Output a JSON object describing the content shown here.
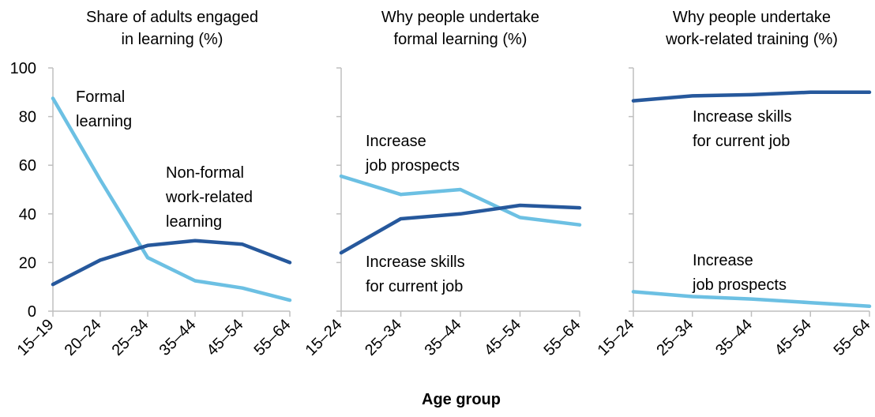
{
  "colors": {
    "light_blue": "#6cc0e3",
    "dark_blue": "#26589c",
    "axis": "#bfbfbf"
  },
  "xlabel": "Age group",
  "chart_data": [
    {
      "type": "line",
      "title": "Share of adults engaged in learning (%)",
      "title_lines": [
        "Share of adults engaged",
        "in learning (%)"
      ],
      "categories": [
        "15–19",
        "20–24",
        "25–34",
        "35–44",
        "45–54",
        "55–64"
      ],
      "yticks": [
        "0",
        "20",
        "40",
        "60",
        "80",
        "100"
      ],
      "ylim": [
        0,
        100
      ],
      "show_ytick_labels": true,
      "series": [
        {
          "name": "Formal learning",
          "color": "#6cc0e3",
          "values": [
            87.5,
            54,
            22,
            12.5,
            9.5,
            4.5
          ]
        },
        {
          "name": "Non-formal work-related learning",
          "color": "#26589c",
          "values": [
            11,
            21,
            27,
            29,
            27.5,
            20
          ]
        }
      ],
      "annotations": [
        {
          "lines": [
            "Formal",
            "learning"
          ]
        },
        {
          "lines": [
            "Non-formal",
            "work-related",
            "learning"
          ]
        }
      ]
    },
    {
      "type": "line",
      "title": "Why people undertake formal learning (%)",
      "title_lines": [
        "Why people undertake",
        "formal learning (%)"
      ],
      "categories": [
        "15–24",
        "25–34",
        "35–44",
        "45–54",
        "55–64"
      ],
      "ylim": [
        0,
        100
      ],
      "show_ytick_labels": false,
      "series": [
        {
          "name": "Increase job prospects",
          "color": "#6cc0e3",
          "values": [
            55.5,
            48,
            50,
            38.5,
            35.5
          ]
        },
        {
          "name": "Increase skills for current job",
          "color": "#26589c",
          "values": [
            24,
            38,
            40,
            43.5,
            42.5
          ]
        }
      ],
      "annotations": [
        {
          "lines": [
            "Increase",
            "job prospects"
          ]
        },
        {
          "lines": [
            "Increase skills",
            "for current job"
          ]
        }
      ]
    },
    {
      "type": "line",
      "title": "Why people undertake work-related training (%)",
      "title_lines": [
        "Why people undertake",
        "work-related training (%)"
      ],
      "categories": [
        "15–24",
        "25–34",
        "35–44",
        "45–54",
        "55–64"
      ],
      "ylim": [
        0,
        100
      ],
      "show_ytick_labels": false,
      "series": [
        {
          "name": "Increase skills for current job",
          "color": "#26589c",
          "values": [
            86.5,
            88.5,
            89,
            90,
            90
          ]
        },
        {
          "name": "Increase job prospects",
          "color": "#6cc0e3",
          "values": [
            8,
            6,
            5,
            3.5,
            2
          ]
        }
      ],
      "annotations": [
        {
          "lines": [
            "Increase skills",
            "for current job"
          ]
        },
        {
          "lines": [
            "Increase",
            "job prospects"
          ]
        }
      ]
    }
  ]
}
